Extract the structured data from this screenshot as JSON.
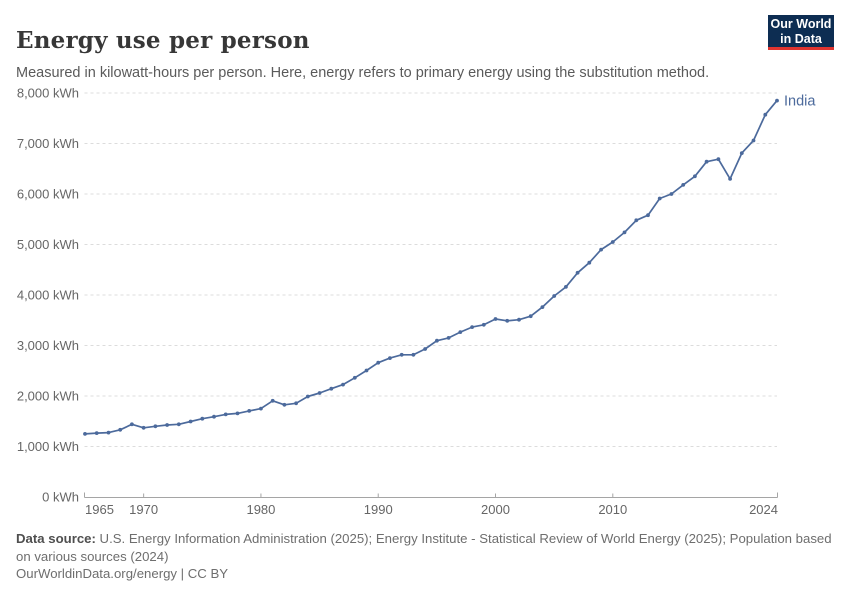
{
  "header": {
    "title": "Energy use per person",
    "subtitle": "Measured in kilowatt-hours per person. Here, energy refers to primary energy using the substitution method.",
    "logo": {
      "line1": "Our World",
      "line2": "in Data",
      "bg_color": "#0d2d52",
      "accent_color": "#e0342f"
    }
  },
  "chart_data": {
    "type": "line",
    "title": "Energy use per person",
    "unit": "kWh",
    "grid": "horizontal-dashed",
    "legend_position": "end-of-line-label",
    "xlim": [
      1965,
      2024
    ],
    "ylim": [
      0,
      8000
    ],
    "x_ticks": [
      1965,
      1970,
      1980,
      1990,
      2000,
      2010,
      2024
    ],
    "y_ticks": [
      0,
      1000,
      2000,
      3000,
      4000,
      5000,
      6000,
      7000,
      8000
    ],
    "y_tick_suffix": " kWh",
    "series": [
      {
        "name": "India",
        "color": "#4c6a9c",
        "markers": true,
        "x": [
          1965,
          1966,
          1967,
          1968,
          1969,
          1970,
          1971,
          1972,
          1973,
          1974,
          1975,
          1976,
          1977,
          1978,
          1979,
          1980,
          1981,
          1982,
          1983,
          1984,
          1985,
          1986,
          1987,
          1988,
          1989,
          1990,
          1991,
          1992,
          1993,
          1994,
          1995,
          1996,
          1997,
          1998,
          1999,
          2000,
          2001,
          2002,
          2003,
          2004,
          2005,
          2006,
          2007,
          2008,
          2009,
          2010,
          2011,
          2012,
          2013,
          2014,
          2015,
          2016,
          2017,
          2018,
          2019,
          2020,
          2021,
          2022,
          2023,
          2024
        ],
        "values": [
          1250,
          1265,
          1275,
          1330,
          1440,
          1370,
          1400,
          1425,
          1440,
          1495,
          1550,
          1590,
          1635,
          1655,
          1705,
          1750,
          1905,
          1825,
          1855,
          1990,
          2060,
          2145,
          2225,
          2360,
          2505,
          2660,
          2750,
          2815,
          2815,
          2930,
          3095,
          3150,
          3265,
          3365,
          3410,
          3525,
          3490,
          3510,
          3580,
          3760,
          3980,
          4160,
          4440,
          4640,
          4900,
          5050,
          5240,
          5480,
          5580,
          5910,
          6000,
          6180,
          6350,
          6640,
          6690,
          6300,
          6810,
          7060,
          7570,
          7850
        ]
      }
    ]
  },
  "footer": {
    "source_label": "Data source:",
    "source_text": " U.S. Energy Information Administration (2025); Energy Institute - Statistical Review of World Energy (2025); Population based on various sources (2024)",
    "license_line": "OurWorldinData.org/energy | CC BY"
  },
  "colors": {
    "series_india": "#4c6a9c",
    "gridline": "#dcdcdc",
    "axis_line": "#a5a5a5",
    "tick_label": "#666666",
    "title_text": "#373737",
    "subtitle_text": "#5a5a5a",
    "footer_text": "#6e6e6e"
  }
}
